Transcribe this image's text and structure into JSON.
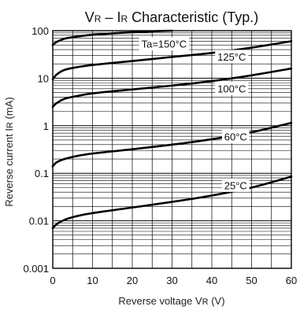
{
  "chart_data": {
    "type": "line",
    "title": "V R – I R Characteristic (Typ.)",
    "title_parts": {
      "v": "V",
      "v_sub": "R",
      "dash": " – ",
      "i": "I",
      "i_sub": "R",
      "rest": " Characteristic (Typ.)"
    },
    "xlabel": "Reverse voltage  VR (V)",
    "xlabel_parts": {
      "text": "Reverse voltage  V",
      "sub": "R",
      "unit": " (V)"
    },
    "ylabel": "Reverse current  IR (mA)",
    "ylabel_parts": {
      "text": "Reverse current  I",
      "sub": "R",
      "unit": " (mA)"
    },
    "xlim": [
      0,
      60
    ],
    "ylim": [
      0.001,
      100
    ],
    "yscale": "log",
    "grid": true,
    "x_ticks": [
      0,
      10,
      20,
      30,
      40,
      50,
      60
    ],
    "x_tick_labels": [
      "0",
      "10",
      "20",
      "30",
      "40",
      "50",
      "60"
    ],
    "y_ticks": [
      0.001,
      0.01,
      0.1,
      1,
      10,
      100
    ],
    "y_tick_labels": [
      "0.001",
      "0.01",
      "0.1",
      "1",
      "10",
      "100"
    ],
    "series": [
      {
        "name": "Ta=150°C",
        "label_x": 28,
        "label_y": 52,
        "x": [
          0,
          1,
          3,
          6,
          10,
          15,
          20,
          25,
          30
        ],
        "y": [
          50,
          58,
          68,
          75,
          82,
          88,
          93,
          97,
          100
        ]
      },
      {
        "name": "125°C",
        "label_x": 45,
        "label_y": 28,
        "x": [
          0,
          1,
          3,
          6,
          10,
          20,
          30,
          40,
          50,
          60
        ],
        "y": [
          9.5,
          12,
          15,
          17,
          19,
          23,
          28,
          34,
          44,
          60
        ]
      },
      {
        "name": "100°C",
        "label_x": 45,
        "label_y": 6,
        "x": [
          0,
          1,
          3,
          6,
          10,
          20,
          30,
          40,
          50,
          60
        ],
        "y": [
          2.5,
          3,
          3.7,
          4.2,
          4.8,
          5.8,
          7,
          8.7,
          11.5,
          16
        ]
      },
      {
        "name": "60°C",
        "label_x": 46,
        "label_y": 0.58,
        "x": [
          0,
          1,
          3,
          6,
          10,
          20,
          30,
          40,
          50,
          60
        ],
        "y": [
          0.14,
          0.17,
          0.2,
          0.23,
          0.26,
          0.32,
          0.4,
          0.52,
          0.73,
          1.15
        ]
      },
      {
        "name": "25°C",
        "label_x": 46,
        "label_y": 0.055,
        "x": [
          0,
          1,
          3,
          6,
          10,
          20,
          30,
          40,
          50,
          60
        ],
        "y": [
          0.007,
          0.0085,
          0.0105,
          0.0125,
          0.0145,
          0.019,
          0.025,
          0.034,
          0.05,
          0.085
        ]
      }
    ]
  }
}
